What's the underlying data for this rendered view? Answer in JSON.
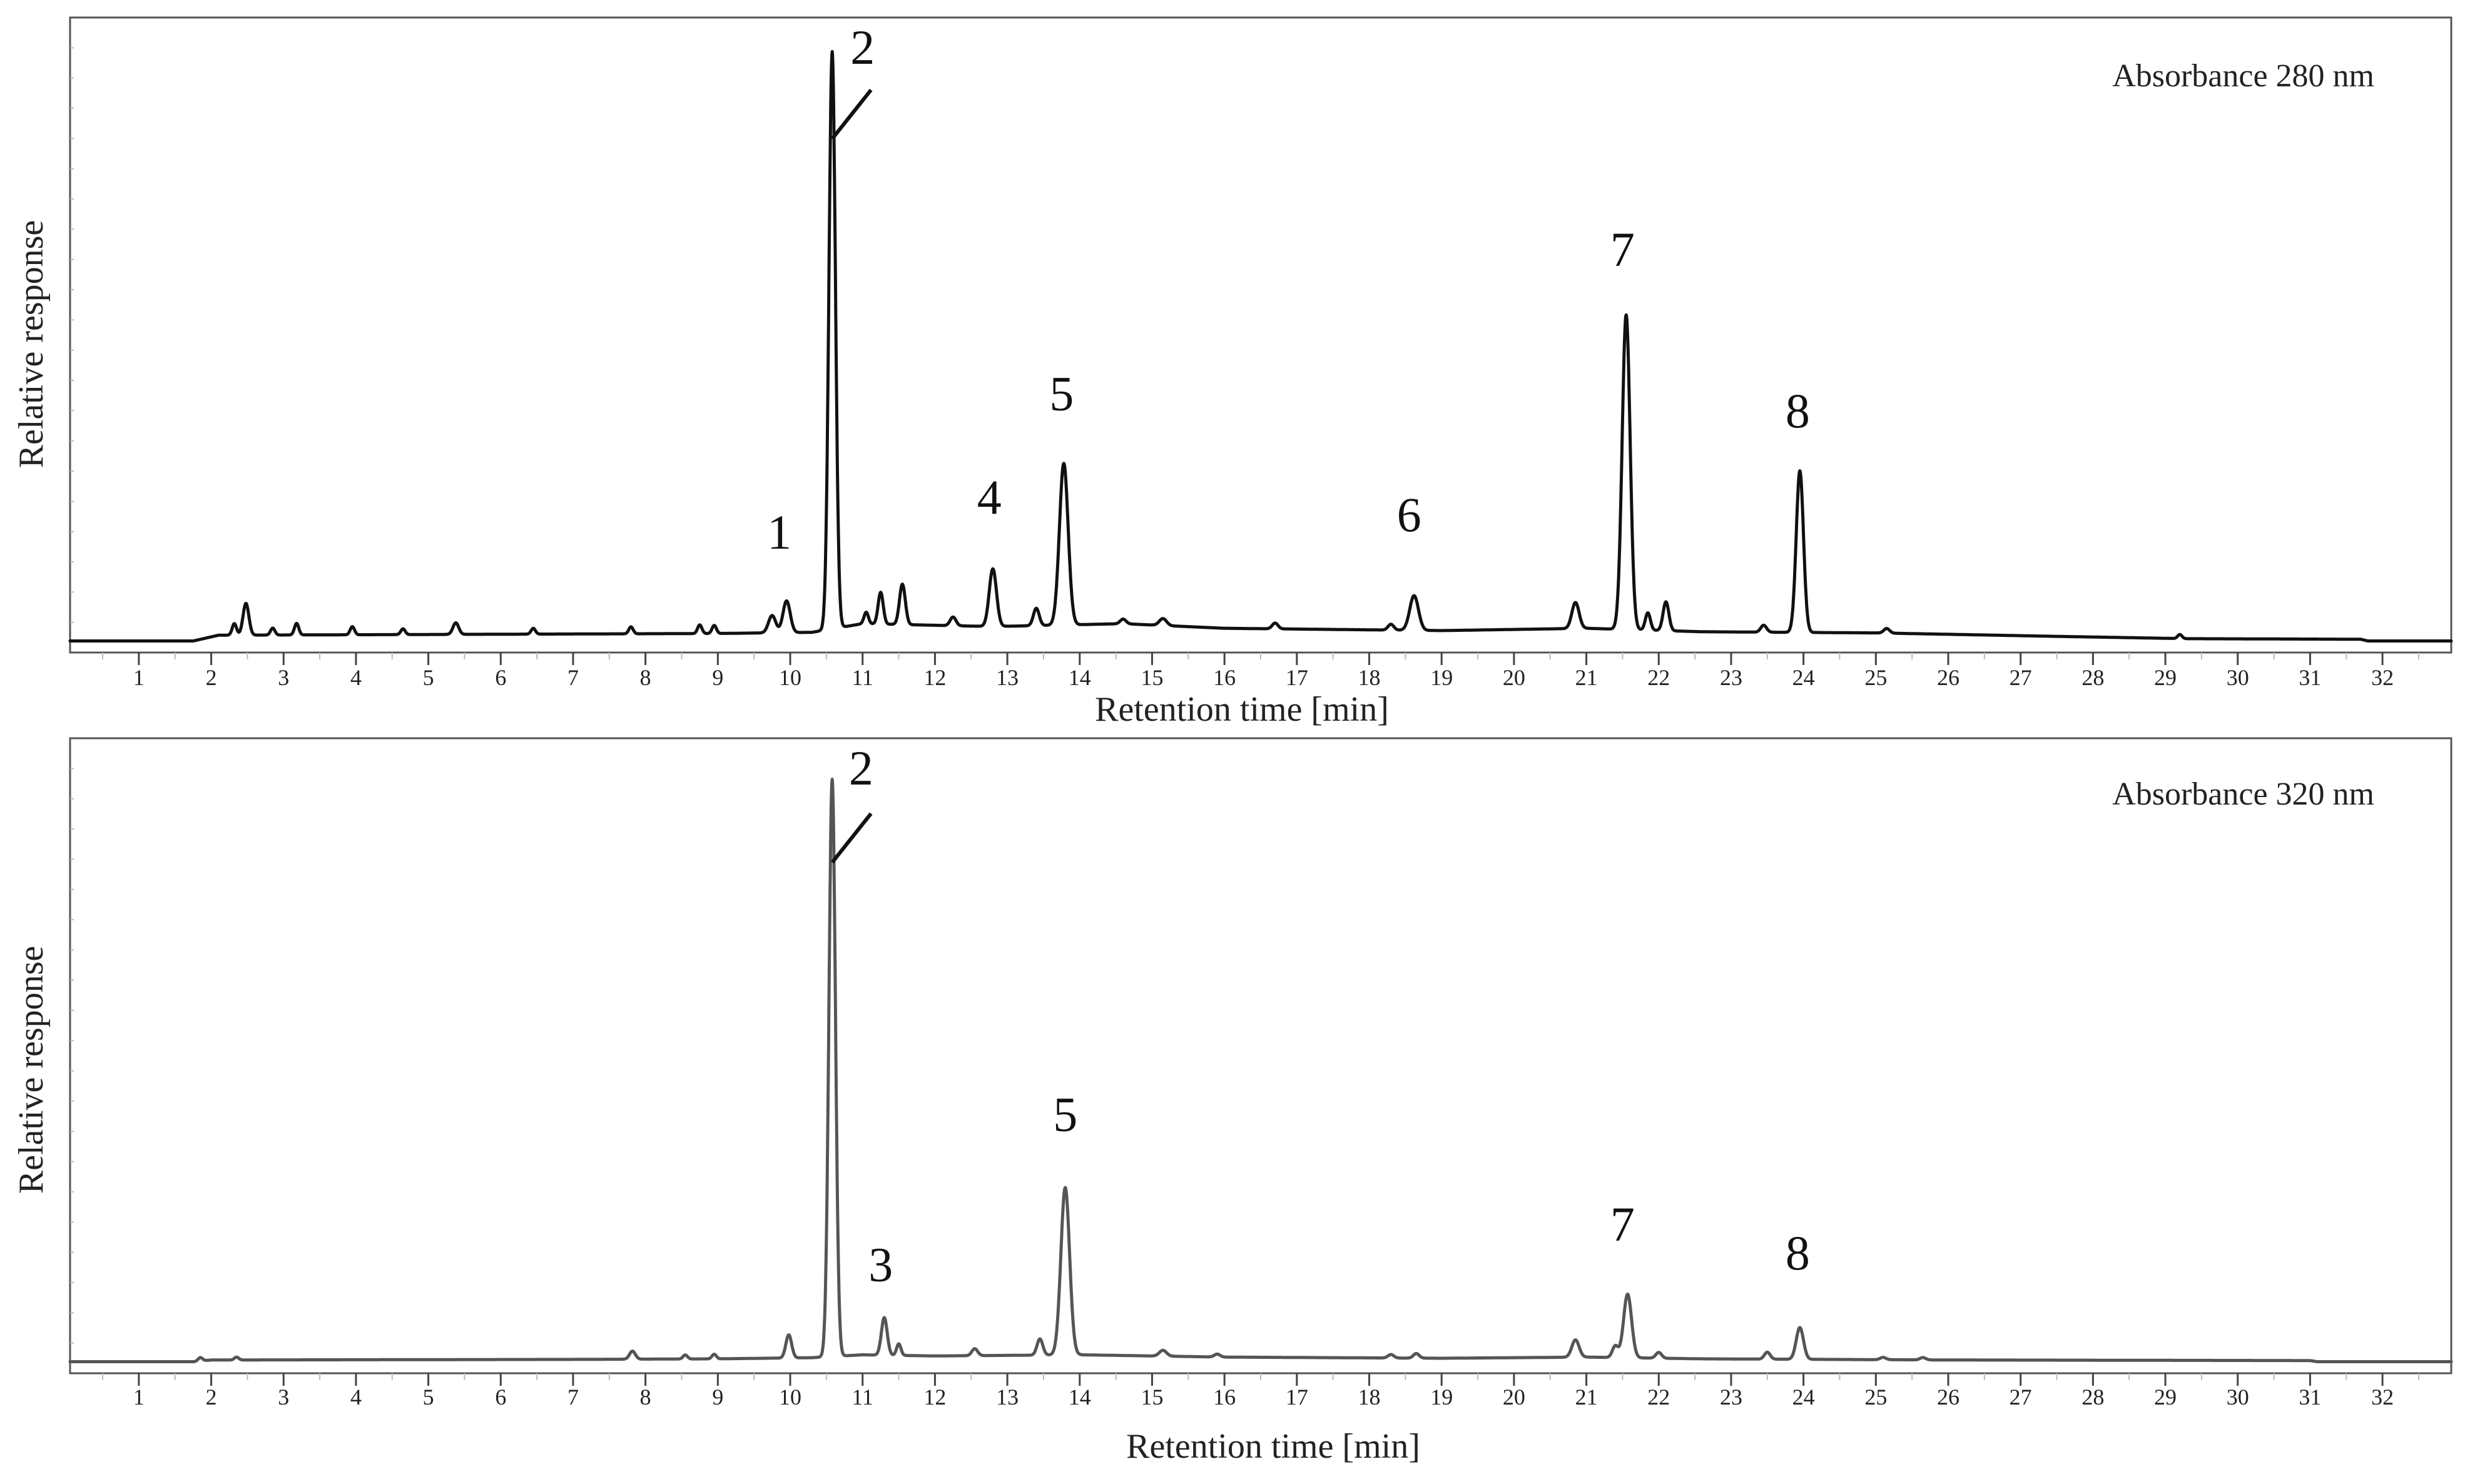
{
  "chart_data": [
    {
      "type": "line",
      "annotation": "Absorbance 280 nm",
      "xlabel": "Retention time [min]",
      "ylabel": "Relative response",
      "xlim": [
        0.05,
        32.95
      ],
      "ylim": [
        -0.02,
        1.08
      ],
      "x_ticks": [
        "1",
        "2",
        "3",
        "4",
        "5",
        "6",
        "7",
        "8",
        "9",
        "10",
        "11",
        "12",
        "13",
        "14",
        "15",
        "16",
        "17",
        "18",
        "19",
        "20",
        "21",
        "22",
        "23",
        "24",
        "25",
        "26",
        "27",
        "28",
        "29",
        "30",
        "31",
        "32"
      ],
      "series": [
        {
          "color": "#111111",
          "baseline": [
            [
              0.0,
              0.0
            ],
            [
              1.75,
              0.0
            ],
            [
              2.1,
              0.01
            ],
            [
              9.0,
              0.013
            ],
            [
              10.3,
              0.015
            ],
            [
              11.0,
              0.03
            ],
            [
              12.8,
              0.025
            ],
            [
              14.6,
              0.03
            ],
            [
              16.0,
              0.022
            ],
            [
              19.0,
              0.018
            ],
            [
              21.0,
              0.022
            ],
            [
              22.6,
              0.016
            ],
            [
              25.0,
              0.014
            ],
            [
              27.5,
              0.008
            ],
            [
              29.3,
              0.004
            ],
            [
              31.7,
              0.003
            ],
            [
              31.8,
              0.0
            ],
            [
              33.0,
              0.0
            ]
          ],
          "peaks": [
            {
              "x": 10.58,
              "y": 1.0,
              "w": 0.045
            },
            {
              "x": 13.78,
              "y": 0.28,
              "w": 0.06
            },
            {
              "x": 21.55,
              "y": 0.545,
              "w": 0.055
            },
            {
              "x": 23.95,
              "y": 0.28,
              "w": 0.05
            },
            {
              "x": 9.95,
              "y": 0.055,
              "w": 0.05
            },
            {
              "x": 12.8,
              "y": 0.1,
              "w": 0.05
            },
            {
              "x": 18.62,
              "y": 0.06,
              "w": 0.06
            },
            {
              "x": 2.48,
              "y": 0.055,
              "w": 0.04
            },
            {
              "x": 2.32,
              "y": 0.02,
              "w": 0.03
            },
            {
              "x": 3.18,
              "y": 0.02,
              "w": 0.03
            },
            {
              "x": 2.85,
              "y": 0.012,
              "w": 0.03
            },
            {
              "x": 3.95,
              "y": 0.014,
              "w": 0.03
            },
            {
              "x": 4.65,
              "y": 0.01,
              "w": 0.03
            },
            {
              "x": 5.38,
              "y": 0.02,
              "w": 0.04
            },
            {
              "x": 6.45,
              "y": 0.01,
              "w": 0.03
            },
            {
              "x": 7.8,
              "y": 0.012,
              "w": 0.03
            },
            {
              "x": 8.75,
              "y": 0.015,
              "w": 0.03
            },
            {
              "x": 8.95,
              "y": 0.014,
              "w": 0.03
            },
            {
              "x": 9.75,
              "y": 0.03,
              "w": 0.05
            },
            {
              "x": 11.25,
              "y": 0.055,
              "w": 0.035
            },
            {
              "x": 11.55,
              "y": 0.07,
              "w": 0.04
            },
            {
              "x": 11.05,
              "y": 0.02,
              "w": 0.03
            },
            {
              "x": 12.25,
              "y": 0.015,
              "w": 0.04
            },
            {
              "x": 13.4,
              "y": 0.03,
              "w": 0.04
            },
            {
              "x": 14.6,
              "y": 0.008,
              "w": 0.04
            },
            {
              "x": 15.15,
              "y": 0.012,
              "w": 0.05
            },
            {
              "x": 16.7,
              "y": 0.01,
              "w": 0.04
            },
            {
              "x": 18.3,
              "y": 0.01,
              "w": 0.04
            },
            {
              "x": 20.85,
              "y": 0.045,
              "w": 0.05
            },
            {
              "x": 21.85,
              "y": 0.03,
              "w": 0.035
            },
            {
              "x": 22.1,
              "y": 0.05,
              "w": 0.04
            },
            {
              "x": 23.45,
              "y": 0.012,
              "w": 0.04
            },
            {
              "x": 25.15,
              "y": 0.008,
              "w": 0.04
            },
            {
              "x": 29.2,
              "y": 0.007,
              "w": 0.03
            }
          ]
        }
      ],
      "labels": [
        {
          "text": "1",
          "x": 9.85,
          "y": 0.16
        },
        {
          "text": "2",
          "x": 11.0,
          "y": 1.0
        },
        {
          "text": "4",
          "x": 12.75,
          "y": 0.22
        },
        {
          "text": "5",
          "x": 13.75,
          "y": 0.4
        },
        {
          "text": "6",
          "x": 18.55,
          "y": 0.19
        },
        {
          "text": "7",
          "x": 21.5,
          "y": 0.65
        },
        {
          "text": "8",
          "x": 23.92,
          "y": 0.37
        }
      ]
    },
    {
      "type": "line",
      "annotation": "Absorbance 320 nm",
      "xlabel": "Retention time [min]",
      "ylabel": "Relative response",
      "xlim": [
        0.05,
        32.95
      ],
      "ylim": [
        -0.02,
        1.08
      ],
      "x_ticks": [
        "1",
        "2",
        "3",
        "4",
        "5",
        "6",
        "7",
        "8",
        "9",
        "10",
        "11",
        "12",
        "13",
        "14",
        "15",
        "16",
        "17",
        "18",
        "19",
        "20",
        "21",
        "22",
        "23",
        "24",
        "25",
        "26",
        "27",
        "28",
        "29",
        "30",
        "31",
        "32"
      ],
      "series": [
        {
          "color": "#555555",
          "baseline": [
            [
              0.0,
              0.0
            ],
            [
              1.75,
              0.0
            ],
            [
              2.0,
              0.003
            ],
            [
              7.0,
              0.004
            ],
            [
              9.0,
              0.005
            ],
            [
              10.3,
              0.007
            ],
            [
              11.0,
              0.012
            ],
            [
              12.0,
              0.01
            ],
            [
              14.0,
              0.012
            ],
            [
              16.0,
              0.008
            ],
            [
              19.0,
              0.006
            ],
            [
              21.0,
              0.008
            ],
            [
              22.6,
              0.005
            ],
            [
              26.0,
              0.003
            ],
            [
              31.0,
              0.002
            ],
            [
              31.1,
              0.0
            ],
            [
              33.0,
              0.0
            ]
          ],
          "peaks": [
            {
              "x": 10.58,
              "y": 1.0,
              "w": 0.045
            },
            {
              "x": 13.8,
              "y": 0.29,
              "w": 0.06
            },
            {
              "x": 21.57,
              "y": 0.11,
              "w": 0.055
            },
            {
              "x": 23.95,
              "y": 0.055,
              "w": 0.05
            },
            {
              "x": 11.3,
              "y": 0.065,
              "w": 0.04
            },
            {
              "x": 9.98,
              "y": 0.04,
              "w": 0.04
            },
            {
              "x": 11.5,
              "y": 0.02,
              "w": 0.03
            },
            {
              "x": 13.45,
              "y": 0.028,
              "w": 0.04
            },
            {
              "x": 20.85,
              "y": 0.03,
              "w": 0.05
            },
            {
              "x": 7.82,
              "y": 0.014,
              "w": 0.04
            },
            {
              "x": 1.85,
              "y": 0.006,
              "w": 0.03
            },
            {
              "x": 2.35,
              "y": 0.005,
              "w": 0.03
            },
            {
              "x": 8.55,
              "y": 0.007,
              "w": 0.03
            },
            {
              "x": 8.95,
              "y": 0.008,
              "w": 0.03
            },
            {
              "x": 12.55,
              "y": 0.012,
              "w": 0.04
            },
            {
              "x": 15.15,
              "y": 0.01,
              "w": 0.05
            },
            {
              "x": 15.9,
              "y": 0.005,
              "w": 0.04
            },
            {
              "x": 18.3,
              "y": 0.006,
              "w": 0.04
            },
            {
              "x": 18.65,
              "y": 0.008,
              "w": 0.04
            },
            {
              "x": 21.4,
              "y": 0.02,
              "w": 0.04
            },
            {
              "x": 22.0,
              "y": 0.01,
              "w": 0.04
            },
            {
              "x": 23.5,
              "y": 0.012,
              "w": 0.04
            },
            {
              "x": 25.1,
              "y": 0.004,
              "w": 0.04
            },
            {
              "x": 25.65,
              "y": 0.004,
              "w": 0.04
            }
          ]
        }
      ],
      "labels": [
        {
          "text": "2",
          "x": 10.98,
          "y": 1.0
        },
        {
          "text": "3",
          "x": 11.25,
          "y": 0.14
        },
        {
          "text": "5",
          "x": 13.8,
          "y": 0.4
        },
        {
          "text": "7",
          "x": 21.5,
          "y": 0.21
        },
        {
          "text": "8",
          "x": 23.92,
          "y": 0.16
        }
      ]
    }
  ]
}
